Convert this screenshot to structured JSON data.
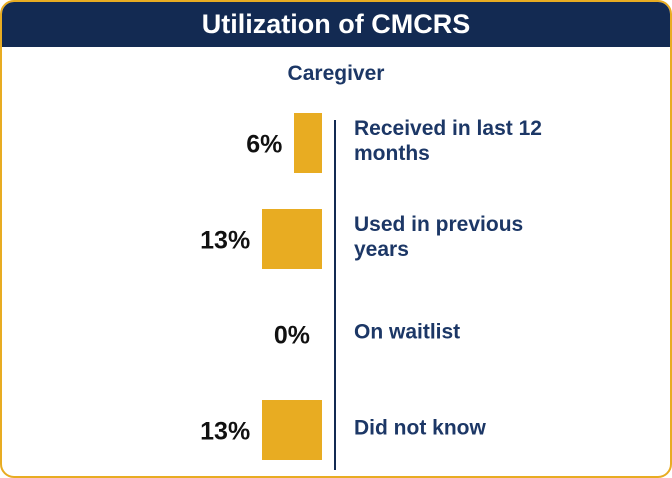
{
  "chart_data": {
    "type": "bar",
    "orientation": "horizontal",
    "title": "Utilization of CMCRS",
    "subtitle": "Caregiver",
    "categories": [
      "Received in last 12 months",
      "Used in previous years",
      "On waitlist",
      "Did not know"
    ],
    "values": [
      6,
      13,
      0,
      13
    ],
    "value_labels": [
      "6%",
      "13%",
      "0%",
      "13%"
    ],
    "color": "#e8ac22"
  }
}
